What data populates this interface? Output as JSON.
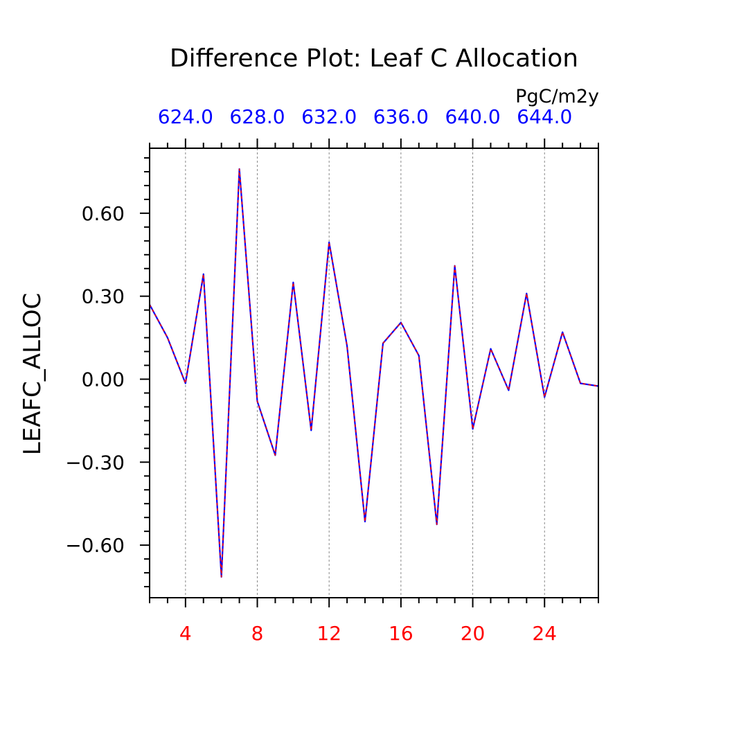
{
  "chart_data": {
    "type": "line",
    "title": "Difference Plot: Leaf C Allocation",
    "units": "PgC/m2y",
    "ylabel": "LEAFC_ALLOC",
    "xlabel": "",
    "xlim": [
      2,
      27
    ],
    "ylim": [
      -0.79,
      0.835
    ],
    "grid": "vertical dashed at major x ticks",
    "x_ticks": [
      4,
      8,
      12,
      16,
      20,
      24
    ],
    "x_tick_labels": [
      "4",
      "8",
      "12",
      "16",
      "20",
      "24"
    ],
    "top_tick_labels": [
      "624.0",
      "628.0",
      "632.0",
      "636.0",
      "640.0",
      "644.0"
    ],
    "y_ticks": [
      0.6,
      0.3,
      0.0,
      -0.3,
      -0.6
    ],
    "y_tick_labels": [
      "0.60",
      "0.30",
      "0.00",
      "−0.30",
      "−0.60"
    ],
    "colors": {
      "x_labels": "#ff0000",
      "top_labels": "#0000ff",
      "series_a": "#0000ff",
      "series_b": "#ff0000",
      "axis": "#000000",
      "grid": "#888888"
    },
    "x": [
      2,
      3,
      4,
      5,
      6,
      7,
      8,
      9,
      10,
      11,
      12,
      13,
      14,
      15,
      16,
      17,
      18,
      19,
      20,
      21,
      22,
      23,
      24,
      25,
      26,
      27
    ],
    "series": [
      {
        "name": "solid",
        "color": "#0000ff",
        "values": [
          0.27,
          0.15,
          -0.015,
          0.38,
          -0.715,
          0.76,
          -0.08,
          -0.275,
          0.35,
          -0.185,
          0.495,
          0.12,
          -0.515,
          0.13,
          0.205,
          0.085,
          -0.525,
          0.41,
          -0.18,
          0.11,
          -0.04,
          0.31,
          -0.065,
          0.17,
          -0.015,
          -0.025
        ]
      },
      {
        "name": "dashed",
        "color": "#ff0000",
        "values": [
          0.27,
          0.15,
          -0.015,
          0.38,
          -0.715,
          0.76,
          -0.08,
          -0.275,
          0.35,
          -0.185,
          0.495,
          0.12,
          -0.515,
          0.13,
          0.205,
          0.085,
          -0.525,
          0.41,
          -0.18,
          0.11,
          -0.04,
          0.31,
          -0.065,
          0.17,
          -0.015,
          -0.025
        ]
      }
    ]
  }
}
